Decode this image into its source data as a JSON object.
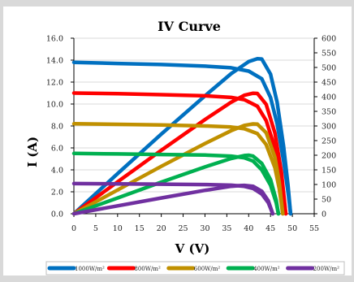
{
  "chart_data": {
    "type": "line",
    "title": "IV Curve",
    "xlabel": "V (V)",
    "ylabel": "I (A)",
    "xlim": [
      0,
      55
    ],
    "ylim": [
      0,
      16
    ],
    "y2lim": [
      0,
      600
    ],
    "x_ticks": [
      "0",
      "5",
      "10",
      "15",
      "20",
      "25",
      "30",
      "35",
      "40",
      "45",
      "50",
      "55"
    ],
    "y_ticks": [
      "0.0",
      "2.0",
      "4.0",
      "6.0",
      "8.0",
      "10.0",
      "12.0",
      "14.0",
      "16.0"
    ],
    "y2_ticks": [
      "0",
      "50",
      "100",
      "150",
      "200",
      "250",
      "300",
      "350",
      "400",
      "450",
      "500",
      "550",
      "600"
    ],
    "legend_position": "bottom",
    "series": [
      {
        "name": "1000W/m²",
        "color": "#0070c0",
        "iv": [
          [
            0,
            13.8
          ],
          [
            10,
            13.7
          ],
          [
            20,
            13.6
          ],
          [
            30,
            13.45
          ],
          [
            36,
            13.3
          ],
          [
            40,
            13.0
          ],
          [
            43,
            12.3
          ],
          [
            45,
            10.6
          ],
          [
            46.5,
            8.2
          ],
          [
            48,
            4.8
          ],
          [
            49,
            2.0
          ],
          [
            49.6,
            0
          ]
        ],
        "power": [
          [
            0,
            0
          ],
          [
            10,
            137
          ],
          [
            20,
            272
          ],
          [
            30,
            403
          ],
          [
            36,
            479
          ],
          [
            40,
            520
          ],
          [
            42,
            530
          ],
          [
            43,
            529
          ],
          [
            45,
            477
          ],
          [
            46.5,
            381
          ],
          [
            48,
            230
          ],
          [
            49,
            98
          ],
          [
            49.6,
            0
          ]
        ]
      },
      {
        "name": "800W/m²",
        "color": "#ff0000",
        "iv": [
          [
            0,
            11.0
          ],
          [
            10,
            10.95
          ],
          [
            20,
            10.85
          ],
          [
            30,
            10.75
          ],
          [
            36,
            10.6
          ],
          [
            39,
            10.4
          ],
          [
            42,
            9.8
          ],
          [
            44,
            8.5
          ],
          [
            46,
            6.0
          ],
          [
            47.5,
            3.0
          ],
          [
            48.5,
            0
          ]
        ],
        "power": [
          [
            0,
            0
          ],
          [
            10,
            109
          ],
          [
            20,
            217
          ],
          [
            30,
            322
          ],
          [
            36,
            381
          ],
          [
            39,
            405
          ],
          [
            41,
            412
          ],
          [
            42,
            411
          ],
          [
            44,
            374
          ],
          [
            46,
            276
          ],
          [
            47.5,
            142
          ],
          [
            48.5,
            0
          ]
        ]
      },
      {
        "name": "600W/m²",
        "color": "#c09000",
        "iv": [
          [
            0,
            8.2
          ],
          [
            10,
            8.15
          ],
          [
            20,
            8.1
          ],
          [
            30,
            8.0
          ],
          [
            36,
            7.9
          ],
          [
            39,
            7.75
          ],
          [
            42,
            7.3
          ],
          [
            44,
            6.3
          ],
          [
            46,
            4.2
          ],
          [
            47,
            2.3
          ],
          [
            47.8,
            0
          ]
        ],
        "power": [
          [
            0,
            0
          ],
          [
            10,
            81
          ],
          [
            20,
            162
          ],
          [
            30,
            240
          ],
          [
            36,
            284
          ],
          [
            39,
            302
          ],
          [
            41,
            307
          ],
          [
            42,
            306
          ],
          [
            44,
            277
          ],
          [
            46,
            193
          ],
          [
            47,
            108
          ],
          [
            47.8,
            0
          ]
        ]
      },
      {
        "name": "400W/m²",
        "color": "#00b050",
        "iv": [
          [
            0,
            5.5
          ],
          [
            10,
            5.45
          ],
          [
            20,
            5.4
          ],
          [
            30,
            5.35
          ],
          [
            36,
            5.25
          ],
          [
            39,
            5.1
          ],
          [
            41,
            4.8
          ],
          [
            43,
            4.0
          ],
          [
            45,
            2.6
          ],
          [
            46.3,
            1.0
          ],
          [
            46.8,
            0
          ]
        ],
        "power": [
          [
            0,
            0
          ],
          [
            10,
            54
          ],
          [
            20,
            108
          ],
          [
            30,
            160
          ],
          [
            36,
            189
          ],
          [
            39,
            199
          ],
          [
            40,
            200
          ],
          [
            41,
            197
          ],
          [
            43,
            172
          ],
          [
            45,
            117
          ],
          [
            46.3,
            46
          ],
          [
            46.8,
            0
          ]
        ]
      },
      {
        "name": "200W/m²",
        "color": "#7030a0",
        "iv": [
          [
            0,
            2.75
          ],
          [
            10,
            2.72
          ],
          [
            20,
            2.7
          ],
          [
            30,
            2.66
          ],
          [
            36,
            2.6
          ],
          [
            39,
            2.5
          ],
          [
            41,
            2.3
          ],
          [
            43,
            1.8
          ],
          [
            44.5,
            1.0
          ],
          [
            45.5,
            0
          ]
        ],
        "power": [
          [
            0,
            0
          ],
          [
            10,
            27
          ],
          [
            20,
            54
          ],
          [
            30,
            80
          ],
          [
            36,
            94
          ],
          [
            38,
            96
          ],
          [
            39,
            97
          ],
          [
            41,
            94
          ],
          [
            43,
            77
          ],
          [
            44.5,
            44
          ],
          [
            45.5,
            0
          ]
        ]
      }
    ]
  }
}
